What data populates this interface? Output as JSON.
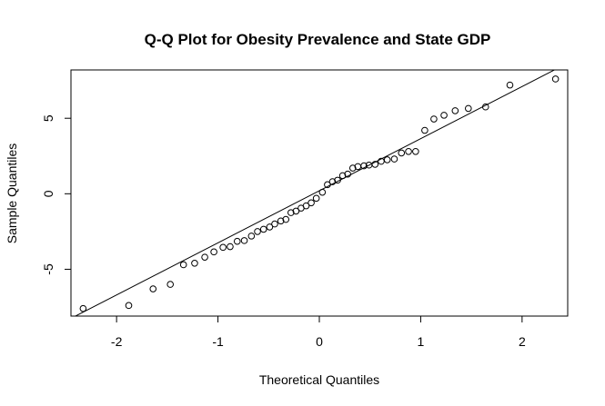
{
  "chart_data": {
    "type": "scatter",
    "title": "Q-Q Plot for Obesity Prevalence and State GDP",
    "xlabel": "Theoretical Quantiles",
    "ylabel": "Sample Quantiles",
    "xlim": [
      -2.45,
      2.45
    ],
    "ylim": [
      -8.1,
      8.2
    ],
    "xticks": [
      -2,
      -1,
      0,
      1,
      2
    ],
    "xtick_labels": [
      "-2",
      "-1",
      "0",
      "1",
      "2"
    ],
    "yticks": [
      -5,
      0,
      5
    ],
    "ytick_labels": [
      "-5",
      "0",
      "5"
    ],
    "grid": false,
    "reference_line": {
      "intercept": 0.2,
      "slope": 3.45
    },
    "points": [
      {
        "x": -2.33,
        "y": -7.6
      },
      {
        "x": -1.88,
        "y": -7.4
      },
      {
        "x": -1.64,
        "y": -6.3
      },
      {
        "x": -1.47,
        "y": -6.0
      },
      {
        "x": -1.34,
        "y": -4.7
      },
      {
        "x": -1.23,
        "y": -4.6
      },
      {
        "x": -1.13,
        "y": -4.2
      },
      {
        "x": -1.04,
        "y": -3.85
      },
      {
        "x": -0.95,
        "y": -3.55
      },
      {
        "x": -0.88,
        "y": -3.5
      },
      {
        "x": -0.81,
        "y": -3.15
      },
      {
        "x": -0.74,
        "y": -3.1
      },
      {
        "x": -0.67,
        "y": -2.8
      },
      {
        "x": -0.61,
        "y": -2.5
      },
      {
        "x": -0.55,
        "y": -2.35
      },
      {
        "x": -0.49,
        "y": -2.2
      },
      {
        "x": -0.44,
        "y": -2.0
      },
      {
        "x": -0.38,
        "y": -1.8
      },
      {
        "x": -0.33,
        "y": -1.7
      },
      {
        "x": -0.28,
        "y": -1.25
      },
      {
        "x": -0.23,
        "y": -1.15
      },
      {
        "x": -0.18,
        "y": -0.95
      },
      {
        "x": -0.13,
        "y": -0.8
      },
      {
        "x": -0.08,
        "y": -0.6
      },
      {
        "x": -0.03,
        "y": -0.3
      },
      {
        "x": 0.03,
        "y": 0.1
      },
      {
        "x": 0.08,
        "y": 0.6
      },
      {
        "x": 0.13,
        "y": 0.8
      },
      {
        "x": 0.18,
        "y": 0.9
      },
      {
        "x": 0.23,
        "y": 1.2
      },
      {
        "x": 0.28,
        "y": 1.3
      },
      {
        "x": 0.33,
        "y": 1.7
      },
      {
        "x": 0.38,
        "y": 1.8
      },
      {
        "x": 0.44,
        "y": 1.85
      },
      {
        "x": 0.49,
        "y": 1.9
      },
      {
        "x": 0.55,
        "y": 1.95
      },
      {
        "x": 0.61,
        "y": 2.15
      },
      {
        "x": 0.67,
        "y": 2.25
      },
      {
        "x": 0.74,
        "y": 2.3
      },
      {
        "x": 0.81,
        "y": 2.7
      },
      {
        "x": 0.88,
        "y": 2.8
      },
      {
        "x": 0.95,
        "y": 2.8
      },
      {
        "x": 1.04,
        "y": 4.2
      },
      {
        "x": 1.13,
        "y": 4.95
      },
      {
        "x": 1.23,
        "y": 5.2
      },
      {
        "x": 1.34,
        "y": 5.5
      },
      {
        "x": 1.47,
        "y": 5.65
      },
      {
        "x": 1.64,
        "y": 5.75
      },
      {
        "x": 1.88,
        "y": 7.2
      },
      {
        "x": 2.33,
        "y": 7.6
      }
    ]
  }
}
